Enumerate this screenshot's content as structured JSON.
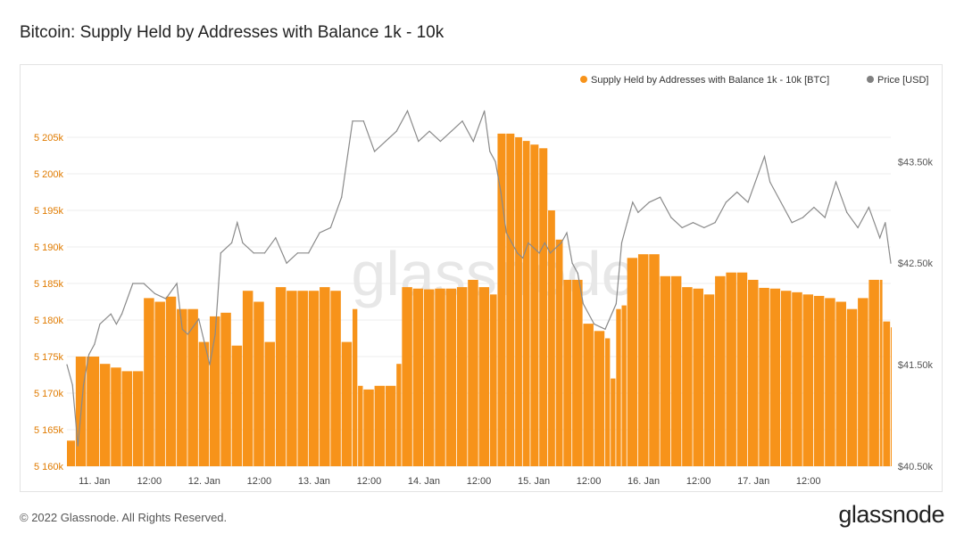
{
  "page": {
    "title": "Bitcoin: Supply Held by Addresses with Balance 1k - 10k",
    "copyright": "© 2022 Glassnode. All Rights Reserved.",
    "brand": "glassnode",
    "watermark": "glassnode"
  },
  "colors": {
    "bar": "#f7931a",
    "line": "#8a8a8a",
    "left_axis": "#e07b00",
    "right_axis": "#555555",
    "grid": "#eeeeee"
  },
  "chart_data": {
    "type": "bar+line",
    "title": "Bitcoin: Supply Held by Addresses with Balance 1k - 10k",
    "legend": [
      {
        "name": "Supply Held by Addresses with Balance 1k - 10k [BTC]",
        "color": "#f7931a",
        "icon": "dot-icon"
      },
      {
        "name": "Price [USD]",
        "color": "#808080",
        "icon": "dot-icon"
      }
    ],
    "legend_position": "top-right",
    "x_ticks": [
      "11. Jan",
      "12:00",
      "12. Jan",
      "12:00",
      "13. Jan",
      "12:00",
      "14. Jan",
      "12:00",
      "15. Jan",
      "12:00",
      "16. Jan",
      "12:00",
      "17. Jan",
      "12:00"
    ],
    "x_range_days": [
      0,
      7.5
    ],
    "y_left": {
      "min": 5160000,
      "max": 5210000,
      "ticks": [
        5160000,
        5165000,
        5170000,
        5175000,
        5180000,
        5185000,
        5190000,
        5195000,
        5200000,
        5205000
      ],
      "tick_labels": [
        "5 160k",
        "5 165k",
        "5 170k",
        "5 175k",
        "5 180k",
        "5 185k",
        "5 190k",
        "5 195k",
        "5 200k",
        "5 205k"
      ]
    },
    "y_right": {
      "min": 40500,
      "max": 44100,
      "ticks": [
        40500,
        41500,
        42500,
        43500
      ],
      "tick_labels": [
        "$40.50k",
        "$41.50k",
        "$42.50k",
        "$43.50k"
      ]
    },
    "series": [
      {
        "name": "Supply Held by Addresses with Balance 1k - 10k [BTC]",
        "axis": "left",
        "type": "bar",
        "points": [
          [
            0.0,
            5163500
          ],
          [
            0.08,
            5175000
          ],
          [
            0.18,
            5175000
          ],
          [
            0.3,
            5174000
          ],
          [
            0.4,
            5173500
          ],
          [
            0.5,
            5173000
          ],
          [
            0.6,
            5173000
          ],
          [
            0.7,
            5183000
          ],
          [
            0.8,
            5182500
          ],
          [
            0.9,
            5183200
          ],
          [
            1.0,
            5181500
          ],
          [
            1.1,
            5181500
          ],
          [
            1.2,
            5177000
          ],
          [
            1.3,
            5180500
          ],
          [
            1.4,
            5181000
          ],
          [
            1.5,
            5176500
          ],
          [
            1.6,
            5184000
          ],
          [
            1.7,
            5182500
          ],
          [
            1.8,
            5177000
          ],
          [
            1.9,
            5184500
          ],
          [
            2.0,
            5184000
          ],
          [
            2.1,
            5184000
          ],
          [
            2.2,
            5184000
          ],
          [
            2.3,
            5184500
          ],
          [
            2.4,
            5184000
          ],
          [
            2.5,
            5177000
          ],
          [
            2.6,
            5181500
          ],
          [
            2.65,
            5171000
          ],
          [
            2.7,
            5170500
          ],
          [
            2.8,
            5171000
          ],
          [
            2.9,
            5171000
          ],
          [
            3.0,
            5174000
          ],
          [
            3.05,
            5184500
          ],
          [
            3.15,
            5184300
          ],
          [
            3.25,
            5184200
          ],
          [
            3.35,
            5184300
          ],
          [
            3.45,
            5184300
          ],
          [
            3.55,
            5184500
          ],
          [
            3.65,
            5185500
          ],
          [
            3.75,
            5184500
          ],
          [
            3.85,
            5183500
          ],
          [
            3.92,
            5205500
          ],
          [
            4.0,
            5205500
          ],
          [
            4.08,
            5205000
          ],
          [
            4.15,
            5204500
          ],
          [
            4.22,
            5204000
          ],
          [
            4.3,
            5203500
          ],
          [
            4.38,
            5195000
          ],
          [
            4.45,
            5191000
          ],
          [
            4.52,
            5185500
          ],
          [
            4.6,
            5185500
          ],
          [
            4.7,
            5179500
          ],
          [
            4.8,
            5178500
          ],
          [
            4.9,
            5177500
          ],
          [
            4.95,
            5172000
          ],
          [
            5.0,
            5181500
          ],
          [
            5.05,
            5182000
          ],
          [
            5.1,
            5188500
          ],
          [
            5.2,
            5189000
          ],
          [
            5.3,
            5189000
          ],
          [
            5.4,
            5186000
          ],
          [
            5.5,
            5186000
          ],
          [
            5.6,
            5184500
          ],
          [
            5.7,
            5184300
          ],
          [
            5.8,
            5183500
          ],
          [
            5.9,
            5186000
          ],
          [
            6.0,
            5186500
          ],
          [
            6.1,
            5186500
          ],
          [
            6.2,
            5185500
          ],
          [
            6.3,
            5184400
          ],
          [
            6.4,
            5184300
          ],
          [
            6.5,
            5184000
          ],
          [
            6.6,
            5183800
          ],
          [
            6.7,
            5183500
          ],
          [
            6.8,
            5183300
          ],
          [
            6.9,
            5183000
          ],
          [
            7.0,
            5182500
          ],
          [
            7.1,
            5181500
          ],
          [
            7.2,
            5183000
          ],
          [
            7.3,
            5185500
          ],
          [
            7.4,
            5185500
          ],
          [
            7.43,
            5179800
          ],
          [
            7.5,
            5179000
          ]
        ]
      },
      {
        "name": "Price [USD]",
        "axis": "right",
        "type": "line",
        "points": [
          [
            0.0,
            41500
          ],
          [
            0.05,
            41300
          ],
          [
            0.1,
            40700
          ],
          [
            0.15,
            41300
          ],
          [
            0.2,
            41600
          ],
          [
            0.25,
            41700
          ],
          [
            0.3,
            41900
          ],
          [
            0.4,
            42000
          ],
          [
            0.45,
            41900
          ],
          [
            0.5,
            42000
          ],
          [
            0.6,
            42300
          ],
          [
            0.7,
            42300
          ],
          [
            0.8,
            42200
          ],
          [
            0.9,
            42150
          ],
          [
            1.0,
            42300
          ],
          [
            1.05,
            41850
          ],
          [
            1.1,
            41800
          ],
          [
            1.2,
            41950
          ],
          [
            1.3,
            41500
          ],
          [
            1.35,
            41800
          ],
          [
            1.4,
            42600
          ],
          [
            1.5,
            42700
          ],
          [
            1.55,
            42900
          ],
          [
            1.6,
            42700
          ],
          [
            1.7,
            42600
          ],
          [
            1.8,
            42600
          ],
          [
            1.9,
            42750
          ],
          [
            2.0,
            42500
          ],
          [
            2.1,
            42600
          ],
          [
            2.2,
            42600
          ],
          [
            2.3,
            42800
          ],
          [
            2.4,
            42850
          ],
          [
            2.5,
            43150
          ],
          [
            2.6,
            43900
          ],
          [
            2.7,
            43900
          ],
          [
            2.8,
            43600
          ],
          [
            2.9,
            43700
          ],
          [
            3.0,
            43800
          ],
          [
            3.1,
            44000
          ],
          [
            3.2,
            43700
          ],
          [
            3.3,
            43800
          ],
          [
            3.4,
            43700
          ],
          [
            3.5,
            43800
          ],
          [
            3.6,
            43900
          ],
          [
            3.7,
            43700
          ],
          [
            3.8,
            44000
          ],
          [
            3.85,
            43600
          ],
          [
            3.9,
            43500
          ],
          [
            3.95,
            43200
          ],
          [
            4.0,
            42800
          ],
          [
            4.05,
            42700
          ],
          [
            4.1,
            42600
          ],
          [
            4.15,
            42550
          ],
          [
            4.2,
            42700
          ],
          [
            4.25,
            42650
          ],
          [
            4.3,
            42600
          ],
          [
            4.35,
            42700
          ],
          [
            4.4,
            42600
          ],
          [
            4.5,
            42700
          ],
          [
            4.55,
            42800
          ],
          [
            4.6,
            42500
          ],
          [
            4.65,
            42400
          ],
          [
            4.7,
            42100
          ],
          [
            4.8,
            41900
          ],
          [
            4.9,
            41850
          ],
          [
            5.0,
            42100
          ],
          [
            5.05,
            42700
          ],
          [
            5.1,
            42900
          ],
          [
            5.15,
            43100
          ],
          [
            5.2,
            43000
          ],
          [
            5.3,
            43100
          ],
          [
            5.4,
            43150
          ],
          [
            5.5,
            42950
          ],
          [
            5.6,
            42850
          ],
          [
            5.7,
            42900
          ],
          [
            5.8,
            42850
          ],
          [
            5.9,
            42900
          ],
          [
            6.0,
            43100
          ],
          [
            6.1,
            43200
          ],
          [
            6.2,
            43100
          ],
          [
            6.3,
            43400
          ],
          [
            6.35,
            43550
          ],
          [
            6.4,
            43300
          ],
          [
            6.5,
            43100
          ],
          [
            6.6,
            42900
          ],
          [
            6.7,
            42950
          ],
          [
            6.8,
            43050
          ],
          [
            6.9,
            42950
          ],
          [
            7.0,
            43300
          ],
          [
            7.1,
            43000
          ],
          [
            7.2,
            42850
          ],
          [
            7.3,
            43050
          ],
          [
            7.4,
            42750
          ],
          [
            7.45,
            42900
          ],
          [
            7.5,
            42500
          ]
        ]
      }
    ]
  }
}
